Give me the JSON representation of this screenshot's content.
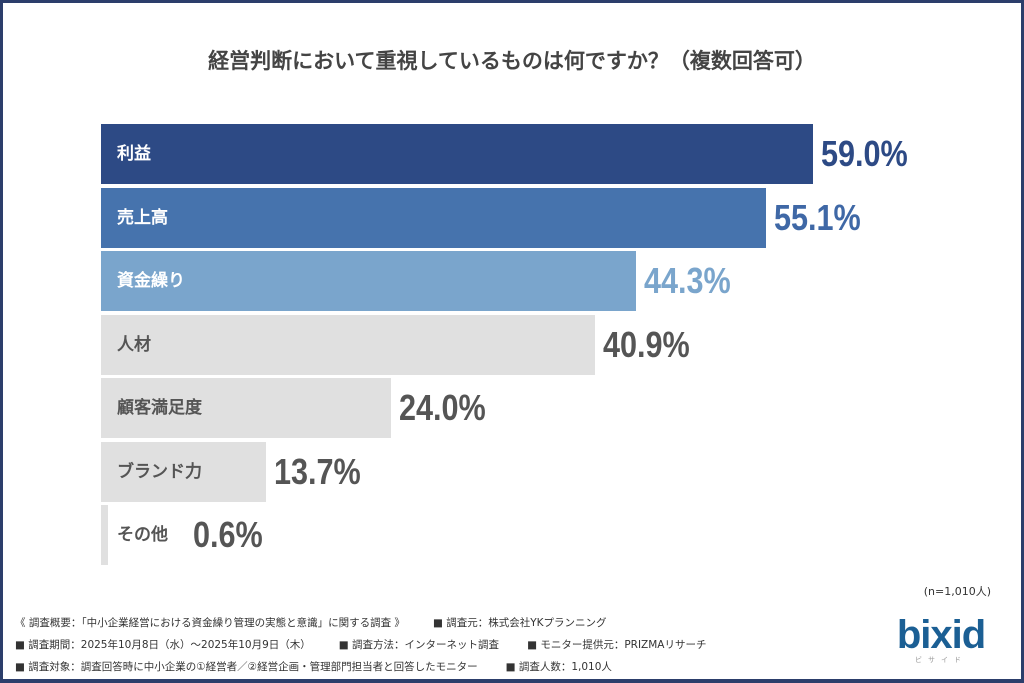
{
  "chart_data": {
    "type": "bar",
    "orientation": "horizontal",
    "title": "経営判断において重視しているものは何ですか？（複数回答可）",
    "categories": [
      "利益",
      "売上高",
      "資金繰り",
      "人材",
      "顧客満足度",
      "ブランド力",
      "その他"
    ],
    "values": [
      59.0,
      55.1,
      44.3,
      40.9,
      24.0,
      13.7,
      0.6
    ],
    "value_labels": [
      "59.0%",
      "55.1%",
      "44.3%",
      "40.9%",
      "24.0%",
      "13.7%",
      "0.6%"
    ],
    "unit": "%",
    "bar_colors": [
      "#2d4a85",
      "#4673ad",
      "#7aa5cc",
      "#e0e0e0",
      "#e0e0e0",
      "#e0e0e0",
      "#e0e0e0"
    ],
    "value_colors": [
      "#2d4a85",
      "#3f68a6",
      "#7aa5cc",
      "#555555",
      "#555555",
      "#555555",
      "#555555"
    ],
    "label_colors": [
      "#ffffff",
      "#ffffff",
      "#ffffff",
      "#555555",
      "#555555",
      "#555555",
      "#555555"
    ],
    "grid": false,
    "legend": "none"
  },
  "sample": "(n=1,010人)",
  "footer": {
    "lines": [
      [
        "《 調査概要：「中小企業経営における資金繰り管理の実態と意識」に関する調査 》",
        "■ 調査元：株式会社YKプランニング"
      ],
      [
        "■ 調査期間：2025年10月8日（水）～2025年10月9日（木）",
        "■ 調査方法：インターネット調査",
        "■ モニター提供元：PRIZMAリサーチ"
      ],
      [
        "■ 調査対象：調査回答時に中小企業の①経営者／②経営企画・管理部門担当者と回答したモニター",
        "■ 調査人数：1,010人"
      ]
    ]
  },
  "logo": {
    "text": "bixid",
    "sub": "ビサイド"
  }
}
